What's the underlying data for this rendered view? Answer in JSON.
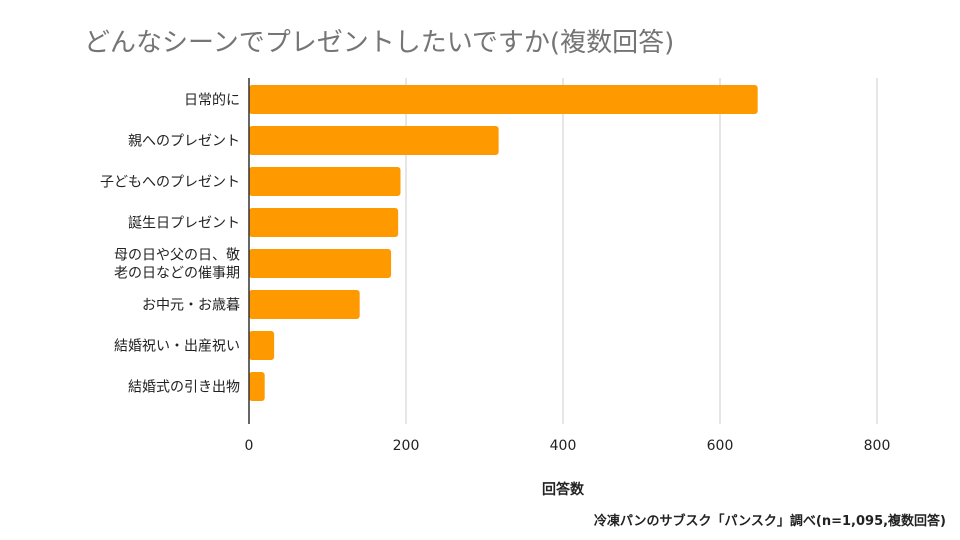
{
  "chart_data": {
    "type": "bar",
    "orientation": "horizontal",
    "title": "どんなシーンでプレゼントしたいですか(複数回答)",
    "xlabel": "回答数",
    "ylabel": "",
    "xlim": [
      0,
      800
    ],
    "xticks": [
      0,
      200,
      400,
      600,
      800
    ],
    "grid": true,
    "legend": "none",
    "bar_color": "#ff9900",
    "categories": [
      [
        "日常的に"
      ],
      [
        "親へのプレゼント"
      ],
      [
        "子どもへのプレゼント"
      ],
      [
        "誕生日プレゼント"
      ],
      [
        "母の日や父の日、敬",
        "老の日などの催事期"
      ],
      [
        "お中元・お歳暮"
      ],
      [
        "結婚祝い・出産祝い"
      ],
      [
        "結婚式の引き出物"
      ]
    ],
    "values": [
      648,
      318,
      193,
      190,
      181,
      141,
      32,
      20
    ]
  },
  "source": "冷凍パンのサブスク「パンスク」調べ(n=1,095,複数回答)"
}
